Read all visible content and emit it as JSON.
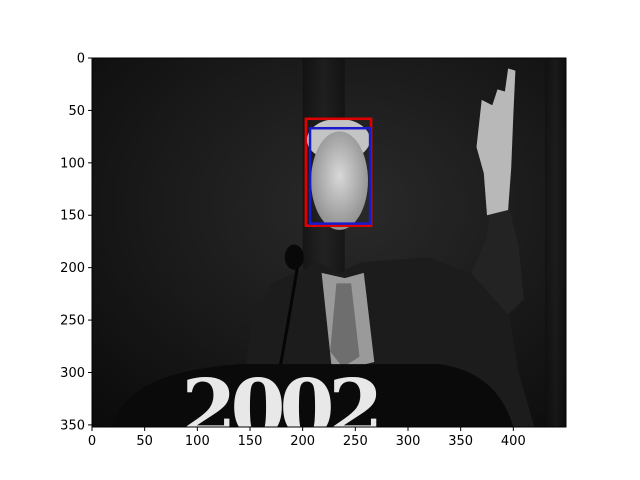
{
  "image_plot": {
    "x_axis": {
      "range": [
        0,
        450
      ],
      "ticks": [
        0,
        50,
        100,
        150,
        200,
        250,
        300,
        350,
        400
      ]
    },
    "y_axis": {
      "range": [
        0,
        352
      ],
      "inverted": true,
      "ticks": [
        0,
        50,
        100,
        150,
        200,
        250,
        300,
        350
      ]
    },
    "overlay_text": "2002",
    "boxes": [
      {
        "color": "#e00000",
        "x0": 203,
        "y0": 58,
        "x1": 265,
        "y1": 160
      },
      {
        "color": "#1a1acc",
        "x0": 207,
        "y0": 67,
        "x1": 264,
        "y1": 158
      }
    ]
  }
}
